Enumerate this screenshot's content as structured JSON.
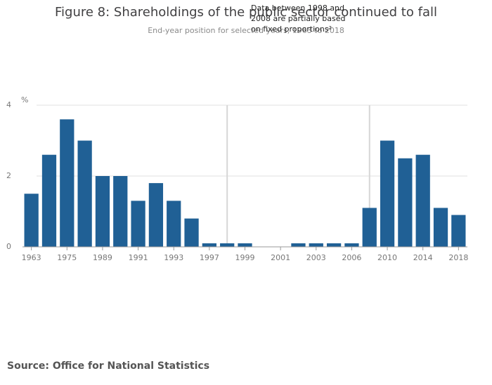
{
  "chart_data": {
    "type": "bar",
    "title": "Figure 8: Shareholdings of the public sector continued to fall",
    "subtitle": "End-year position for selected years, 1963 to 2018",
    "y_label": "%",
    "annotation": "Data between 1998 and 2008 are partially based on fixed proportions²",
    "source": "Source: Office for National Statistics",
    "categories": [
      "1963",
      null,
      "1975",
      null,
      "1989",
      null,
      "1991",
      null,
      "1993",
      null,
      "1997",
      null,
      "1999",
      null,
      "2001",
      null,
      "2003",
      null,
      "2006",
      null,
      "2010",
      null,
      "2014",
      null,
      "2018"
    ],
    "values": [
      1.5,
      2.6,
      3.6,
      3.0,
      2.0,
      2.0,
      1.3,
      1.8,
      1.3,
      0.8,
      0.1,
      0.1,
      0.1,
      0,
      0,
      0.1,
      0.1,
      0.1,
      0.1,
      1.1,
      3.0,
      2.5,
      2.6,
      1.1,
      0.9
    ],
    "color": "#206095",
    "ylim": [
      0,
      4
    ],
    "yticks": [
      0,
      2,
      4
    ],
    "grid": true
  }
}
